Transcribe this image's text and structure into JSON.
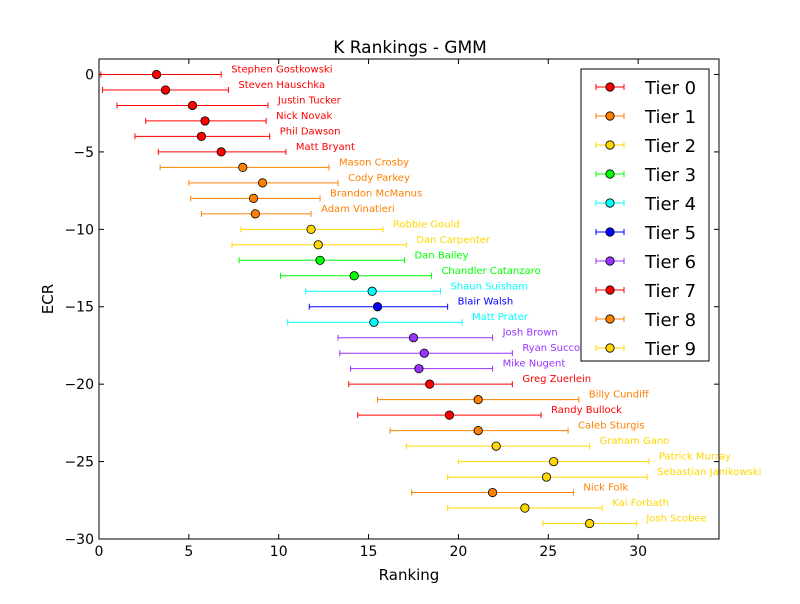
{
  "chart_data": {
    "type": "scatter",
    "title": "K Rankings - GMM",
    "xlabel": "Ranking",
    "ylabel": "ECR",
    "xlim": [
      0,
      34.5
    ],
    "ylim": [
      -30,
      1
    ],
    "xticks": [
      0,
      5,
      10,
      15,
      20,
      25,
      30
    ],
    "xtick_labels": [
      "0",
      "5",
      "10",
      "15",
      "20",
      "25",
      "30"
    ],
    "yticks": [
      0,
      -5,
      -10,
      -15,
      -20,
      -25,
      -30
    ],
    "ytick_labels": [
      "0",
      "−5",
      "−10",
      "−15",
      "−20",
      "−25",
      "−30"
    ],
    "grid": false,
    "legend_position": "top-right",
    "tier_colors": [
      "#ff0000",
      "#ff8000",
      "#ffd700",
      "#00ff00",
      "#00ffff",
      "#0000ff",
      "#9933ff",
      "#ff0000",
      "#ff8000",
      "#ffd700"
    ],
    "legend": [
      "Tier 0",
      "Tier 1",
      "Tier 2",
      "Tier 3",
      "Tier 4",
      "Tier 5",
      "Tier 6",
      "Tier 7",
      "Tier 8",
      "Tier 9"
    ],
    "points": [
      {
        "name": "Stephen Gostkowski",
        "x": 3.2,
        "y": 0,
        "xmin": 0.1,
        "xmax": 6.8,
        "tier": 0
      },
      {
        "name": "Steven Hauschka",
        "x": 3.7,
        "y": -1,
        "xmin": 0.2,
        "xmax": 7.2,
        "tier": 0
      },
      {
        "name": "Justin Tucker",
        "x": 5.2,
        "y": -2,
        "xmin": 1.0,
        "xmax": 9.4,
        "tier": 0
      },
      {
        "name": "Nick Novak",
        "x": 5.9,
        "y": -3,
        "xmin": 2.6,
        "xmax": 9.3,
        "tier": 0
      },
      {
        "name": "Phil Dawson",
        "x": 5.7,
        "y": -4,
        "xmin": 2.0,
        "xmax": 9.5,
        "tier": 0
      },
      {
        "name": "Matt Bryant",
        "x": 6.8,
        "y": -5,
        "xmin": 3.3,
        "xmax": 10.4,
        "tier": 0
      },
      {
        "name": "Mason Crosby",
        "x": 8.0,
        "y": -6,
        "xmin": 3.4,
        "xmax": 12.8,
        "tier": 1
      },
      {
        "name": "Cody Parkey",
        "x": 9.1,
        "y": -7,
        "xmin": 5.0,
        "xmax": 13.3,
        "tier": 1
      },
      {
        "name": "Brandon McManus",
        "x": 8.6,
        "y": -8,
        "xmin": 5.1,
        "xmax": 12.3,
        "tier": 1
      },
      {
        "name": "Adam Vinatieri",
        "x": 8.7,
        "y": -9,
        "xmin": 5.7,
        "xmax": 11.8,
        "tier": 1
      },
      {
        "name": "Robbie Gould",
        "x": 11.8,
        "y": -10,
        "xmin": 7.9,
        "xmax": 15.8,
        "tier": 2
      },
      {
        "name": "Dan Carpenter",
        "x": 12.2,
        "y": -11,
        "xmin": 7.4,
        "xmax": 17.1,
        "tier": 2
      },
      {
        "name": "Dan Bailey",
        "x": 12.3,
        "y": -12,
        "xmin": 7.8,
        "xmax": 17.0,
        "tier": 3
      },
      {
        "name": "Chandler Catanzaro",
        "x": 14.2,
        "y": -13,
        "xmin": 10.1,
        "xmax": 18.5,
        "tier": 3
      },
      {
        "name": "Shaun Suisham",
        "x": 15.2,
        "y": -14,
        "xmin": 11.5,
        "xmax": 19.0,
        "tier": 4
      },
      {
        "name": "Blair Walsh",
        "x": 15.5,
        "y": -15,
        "xmin": 11.7,
        "xmax": 19.4,
        "tier": 5
      },
      {
        "name": "Matt Prater",
        "x": 15.3,
        "y": -16,
        "xmin": 10.5,
        "xmax": 20.2,
        "tier": 4
      },
      {
        "name": "Josh Brown",
        "x": 17.5,
        "y": -17,
        "xmin": 13.3,
        "xmax": 21.9,
        "tier": 6
      },
      {
        "name": "Ryan Succop",
        "x": 18.1,
        "y": -18,
        "xmin": 13.4,
        "xmax": 23.0,
        "tier": 6
      },
      {
        "name": "Mike Nugent",
        "x": 17.8,
        "y": -19,
        "xmin": 14.0,
        "xmax": 21.9,
        "tier": 6
      },
      {
        "name": "Greg Zuerlein",
        "x": 18.4,
        "y": -20,
        "xmin": 13.9,
        "xmax": 23.0,
        "tier": 7
      },
      {
        "name": "Billy Cundiff",
        "x": 21.1,
        "y": -21,
        "xmin": 15.5,
        "xmax": 26.7,
        "tier": 8
      },
      {
        "name": "Randy Bullock",
        "x": 19.5,
        "y": -22,
        "xmin": 14.4,
        "xmax": 24.6,
        "tier": 7
      },
      {
        "name": "Caleb Sturgis",
        "x": 21.1,
        "y": -23,
        "xmin": 16.2,
        "xmax": 26.1,
        "tier": 8
      },
      {
        "name": "Graham Gano",
        "x": 22.1,
        "y": -24,
        "xmin": 17.1,
        "xmax": 27.3,
        "tier": 9
      },
      {
        "name": "Patrick Murray",
        "x": 25.3,
        "y": -25,
        "xmin": 20.0,
        "xmax": 30.6,
        "tier": 9
      },
      {
        "name": "Sebastian Janikowski",
        "x": 24.9,
        "y": -26,
        "xmin": 19.4,
        "xmax": 30.5,
        "tier": 9
      },
      {
        "name": "Nick Folk",
        "x": 21.9,
        "y": -27,
        "xmin": 17.4,
        "xmax": 26.4,
        "tier": 8
      },
      {
        "name": "Kai Forbath",
        "x": 23.7,
        "y": -28,
        "xmin": 19.4,
        "xmax": 28.0,
        "tier": 9
      },
      {
        "name": "Josh Scobee",
        "x": 27.3,
        "y": -29,
        "xmin": 24.7,
        "xmax": 29.9,
        "tier": 9
      }
    ]
  }
}
